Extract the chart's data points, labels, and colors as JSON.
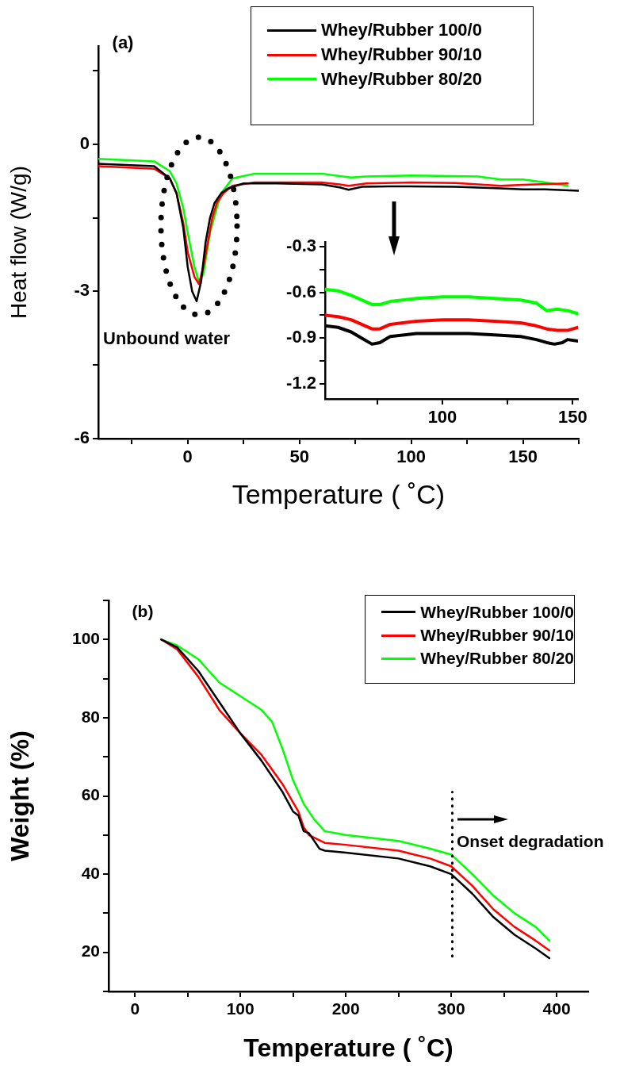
{
  "chart_data": [
    {
      "type": "line",
      "title": "(a)",
      "xlabel": "Temperature ( ˚C)",
      "ylabel": "Heat flow (W/g)",
      "xlim": [
        -40,
        175
      ],
      "ylim": [
        -6,
        2
      ],
      "xticks": [
        {
          "value": -25,
          "label": null
        },
        0,
        {
          "value": 25,
          "label": null
        },
        50,
        {
          "value": 75,
          "label": null
        },
        100,
        {
          "value": 125,
          "label": null
        },
        150,
        {
          "value": 175,
          "label": null
        }
      ],
      "yticks": [
        -6,
        {
          "value": -4.5,
          "label": null
        },
        -3,
        {
          "value": -1.5,
          "label": null
        },
        0,
        {
          "value": 1.5,
          "label": null
        }
      ],
      "grid": false,
      "legend": "top right",
      "marker": "none",
      "annotations": [
        "Unbound water"
      ],
      "series": [
        {
          "name": "Whey/Rubber 100/0",
          "color": "#000000",
          "x": [
            -40,
            -15,
            -8,
            -5,
            -2,
            0,
            2,
            4,
            6,
            8,
            10,
            12,
            15,
            18,
            25,
            40,
            60,
            68,
            72,
            78,
            90,
            100,
            120,
            140,
            150,
            160,
            175
          ],
          "values": [
            -0.4,
            -0.45,
            -0.7,
            -1.0,
            -1.7,
            -2.5,
            -3.0,
            -3.2,
            -2.8,
            -2.0,
            -1.5,
            -1.2,
            -1.0,
            -0.9,
            -0.8,
            -0.8,
            -0.82,
            -0.88,
            -0.93,
            -0.87,
            -0.86,
            -0.86,
            -0.87,
            -0.9,
            -0.92,
            -0.92,
            -0.95
          ]
        },
        {
          "name": "Whey/Rubber 90/10",
          "color": "#ff0000",
          "x": [
            -40,
            -15,
            -8,
            -5,
            -2,
            0,
            3,
            5,
            7,
            9,
            11,
            13,
            16,
            20,
            30,
            60,
            68,
            72,
            80,
            100,
            120,
            140,
            150,
            170
          ],
          "values": [
            -0.45,
            -0.5,
            -0.7,
            -1.0,
            -1.6,
            -2.2,
            -2.7,
            -2.85,
            -2.5,
            -2.0,
            -1.5,
            -1.2,
            -1.0,
            -0.85,
            -0.78,
            -0.78,
            -0.82,
            -0.85,
            -0.8,
            -0.78,
            -0.79,
            -0.85,
            -0.83,
            -0.8
          ]
        },
        {
          "name": "Whey/Rubber 80/20",
          "color": "#00ff00",
          "x": [
            -40,
            -15,
            -8,
            -5,
            -2,
            0,
            3,
            5,
            7,
            10,
            13,
            15,
            20,
            30,
            60,
            68,
            73,
            80,
            100,
            130,
            140,
            150,
            160,
            170
          ],
          "values": [
            -0.3,
            -0.35,
            -0.55,
            -0.8,
            -1.3,
            -1.8,
            -2.5,
            -2.8,
            -2.65,
            -1.8,
            -1.3,
            -1.0,
            -0.7,
            -0.6,
            -0.6,
            -0.65,
            -0.68,
            -0.66,
            -0.64,
            -0.66,
            -0.72,
            -0.72,
            -0.78,
            -0.85
          ]
        }
      ]
    },
    {
      "type": "line",
      "xlim": [
        55,
        152
      ],
      "ylim": [
        -1.3,
        -0.27
      ],
      "xticks": [
        {
          "value": 75,
          "label": null
        },
        100,
        {
          "value": 125,
          "label": null
        },
        150
      ],
      "yticks": [
        -1.2,
        {
          "value": -1.05,
          "label": null
        },
        -0.9,
        {
          "value": -0.75,
          "label": null
        },
        -0.6,
        {
          "value": -0.45,
          "label": null
        },
        -0.3
      ],
      "grid": false,
      "marker": "none",
      "series": [
        {
          "color": "#000000",
          "x": [
            55,
            60,
            65,
            69,
            73,
            76,
            80,
            90,
            100,
            110,
            120,
            130,
            136,
            140,
            143,
            146,
            148,
            152
          ],
          "values": [
            -0.82,
            -0.83,
            -0.86,
            -0.9,
            -0.94,
            -0.93,
            -0.89,
            -0.87,
            -0.87,
            -0.87,
            -0.88,
            -0.89,
            -0.91,
            -0.93,
            -0.94,
            -0.93,
            -0.91,
            -0.92
          ]
        },
        {
          "color": "#ff0000",
          "x": [
            55,
            60,
            65,
            69,
            73,
            76,
            80,
            90,
            100,
            110,
            120,
            130,
            136,
            140,
            144,
            148,
            152
          ],
          "values": [
            -0.75,
            -0.76,
            -0.78,
            -0.81,
            -0.84,
            -0.84,
            -0.81,
            -0.79,
            -0.78,
            -0.78,
            -0.79,
            -0.8,
            -0.82,
            -0.84,
            -0.85,
            -0.85,
            -0.83
          ]
        },
        {
          "color": "#00ff00",
          "x": [
            55,
            60,
            65,
            69,
            73,
            76,
            80,
            90,
            100,
            110,
            120,
            130,
            136,
            140,
            144,
            148,
            152
          ],
          "values": [
            -0.58,
            -0.59,
            -0.62,
            -0.65,
            -0.68,
            -0.68,
            -0.66,
            -0.64,
            -0.63,
            -0.63,
            -0.64,
            -0.65,
            -0.67,
            -0.72,
            -0.71,
            -0.72,
            -0.74
          ]
        }
      ]
    },
    {
      "type": "line",
      "title": "(b)",
      "xlabel": "Temperature ( ˚C)",
      "ylabel": "Weight (%)",
      "xlim": [
        -25,
        430
      ],
      "ylim": [
        10,
        110
      ],
      "xticks": [
        0,
        {
          "value": 50,
          "label": null
        },
        100,
        {
          "value": 150,
          "label": null
        },
        200,
        {
          "value": 250,
          "label": null
        },
        300,
        {
          "value": 350,
          "label": null
        },
        400
      ],
      "yticks": [
        {
          "value": 10,
          "label": null
        },
        20,
        {
          "value": 30,
          "label": null
        },
        40,
        {
          "value": 50,
          "label": null
        },
        60,
        {
          "value": 70,
          "label": null
        },
        80,
        {
          "value": 90,
          "label": null
        },
        100,
        {
          "value": 110,
          "label": null
        }
      ],
      "grid": false,
      "legend": "top right",
      "marker": "none",
      "annotations": [
        "Onset degradation"
      ],
      "ref_lines": [
        {
          "axis": "x",
          "value": 301,
          "line_style": "dotted",
          "color": "#000000"
        }
      ],
      "series": [
        {
          "name": "Whey/Rubber 100/0",
          "color": "#000000",
          "x": [
            25,
            40,
            60,
            80,
            100,
            120,
            140,
            150,
            155,
            160,
            165,
            175,
            180,
            200,
            250,
            280,
            300,
            320,
            340,
            360,
            380,
            393
          ],
          "values": [
            100,
            98,
            92,
            84,
            76,
            69,
            61,
            56,
            55,
            51,
            50.5,
            46.5,
            46,
            45.5,
            44,
            42,
            40,
            35,
            29,
            24.5,
            21,
            18.5
          ]
        },
        {
          "name": "Whey/Rubber 90/10",
          "color": "#ff0000",
          "x": [
            25,
            40,
            60,
            80,
            100,
            120,
            140,
            155,
            160,
            165,
            180,
            200,
            250,
            280,
            300,
            320,
            340,
            360,
            380,
            393
          ],
          "values": [
            100,
            97.5,
            90.5,
            82,
            76,
            70.5,
            63,
            56,
            52,
            50,
            48,
            47.5,
            46,
            44,
            42,
            37,
            31,
            26.5,
            23,
            20.5
          ]
        },
        {
          "name": "Whey/Rubber 80/20",
          "color": "#00ff00",
          "x": [
            25,
            40,
            60,
            80,
            100,
            120,
            130,
            140,
            150,
            160,
            170,
            180,
            200,
            250,
            280,
            300,
            320,
            340,
            360,
            380,
            393
          ],
          "values": [
            100,
            98.5,
            95,
            89,
            85.5,
            82,
            79,
            72,
            64,
            58,
            54,
            51,
            50,
            48.5,
            46.5,
            45,
            40,
            34.5,
            30,
            26.5,
            23
          ]
        }
      ]
    }
  ]
}
